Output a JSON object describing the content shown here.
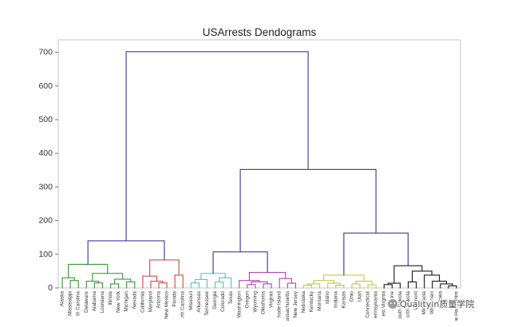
{
  "chart_data": {
    "type": "dendrogram",
    "title": "USArrests Dendograms",
    "ylim": [
      0,
      737
    ],
    "yticks": [
      0,
      100,
      200,
      300,
      400,
      500,
      600,
      700
    ],
    "grid": false,
    "leaves": [
      "Alaska",
      "Mississippi",
      "th Carolina",
      "Delaware",
      "Alabama",
      "Louisiana",
      "Illinois",
      "New York",
      "Michigan",
      "Nevada",
      "California",
      "Maryland",
      "Arizona",
      "New Mexico",
      "Florida",
      "rth Carolina",
      "Missouri",
      "Arkansas",
      "Tennessee",
      "Georgia",
      "Colorado",
      "Texas",
      "Washington",
      "Oregon",
      "Wyoming",
      "Oklahoma",
      "Virginia",
      "hode Island",
      "assachusetts",
      "New Jersey",
      "Nebraska",
      "Kentucky",
      "Montana",
      "Idaho",
      "Indiana",
      "Kansas",
      "Ohio",
      "Utah",
      "Connecticut",
      "ennsylvania",
      "est Virginia",
      "Maine",
      "outh Dakota",
      "orth Dakota",
      "Vermont",
      "Minnesota",
      "Wisconsin",
      "Iowa",
      "",
      "w Hampshire"
    ],
    "colors": {
      "blue": "#3d3d9c",
      "green": "#3c9a3c",
      "red": "#d44d4d",
      "cyan": "#55c6c6",
      "magenta": "#b348b3",
      "yellow": "#c6c64c",
      "black": "#1e1e1e"
    },
    "tree": {
      "height": 702,
      "color": "blue",
      "children": [
        {
          "height": 140,
          "children": [
            {
              "height": 70,
              "color": "green",
              "children": [
                {
                  "height": 30,
                  "children": [
                    0,
                    {
                      "height": 22,
                      "children": [
                        1,
                        2
                      ]
                    }
                  ]
                },
                {
                  "height": 43,
                  "children": [
                    {
                      "height": 20,
                      "children": [
                        3,
                        {
                          "height": 15,
                          "children": [
                            4,
                            5
                          ]
                        }
                      ]
                    },
                    {
                      "height": 26,
                      "children": [
                        {
                          "height": 12,
                          "children": [
                            6,
                            7
                          ]
                        },
                        {
                          "height": 18,
                          "children": [
                            8,
                            9
                          ]
                        }
                      ]
                    }
                  ]
                }
              ]
            },
            {
              "height": 83,
              "color": "red",
              "children": [
                {
                  "height": 35,
                  "children": [
                    10,
                    {
                      "height": 20,
                      "children": [
                        11,
                        {
                          "height": 15,
                          "children": [
                            12,
                            13
                          ]
                        }
                      ]
                    }
                  ]
                },
                {
                  "height": 38,
                  "children": [
                    14,
                    15
                  ]
                }
              ]
            }
          ]
        },
        {
          "height": 352,
          "children": [
            {
              "height": 107,
              "children": [
                {
                  "height": 43,
                  "color": "cyan",
                  "children": [
                    {
                      "height": 25,
                      "children": [
                        {
                          "height": 15,
                          "children": [
                            16,
                            17
                          ]
                        },
                        18
                      ]
                    },
                    {
                      "height": 30,
                      "children": [
                        {
                          "height": 18,
                          "children": [
                            19,
                            20
                          ]
                        },
                        21
                      ]
                    }
                  ]
                },
                {
                  "height": 46,
                  "color": "magenta",
                  "children": [
                    {
                      "height": 22,
                      "children": [
                        22,
                        {
                          "height": 18,
                          "children": [
                            {
                              "height": 10,
                              "children": [
                                23,
                                24
                              ]
                            },
                            {
                              "height": 12,
                              "children": [
                                25,
                                26
                              ]
                            }
                          ]
                        }
                      ]
                    },
                    {
                      "height": 28,
                      "children": [
                        27,
                        {
                          "height": 14,
                          "children": [
                            28,
                            29
                          ]
                        }
                      ]
                    }
                  ]
                }
              ]
            },
            {
              "height": 163,
              "children": [
                {
                  "height": 38,
                  "color": "yellow",
                  "children": [
                    {
                      "height": 22,
                      "children": [
                        {
                          "height": 12,
                          "children": [
                            {
                              "height": 8,
                              "children": [
                                30,
                                31
                              ]
                            },
                            32
                          ]
                        },
                        {
                          "height": 14,
                          "children": [
                            33,
                            {
                              "height": 8,
                              "children": [
                                34,
                                35
                              ]
                            }
                          ]
                        }
                      ]
                    },
                    {
                      "height": 20,
                      "children": [
                        {
                          "height": 12,
                          "children": [
                            36,
                            37
                          ]
                        },
                        {
                          "height": 9,
                          "children": [
                            38,
                            39
                          ]
                        }
                      ]
                    }
                  ]
                },
                {
                  "height": 66,
                  "color": "black",
                  "children": [
                    {
                      "height": 14,
                      "children": [
                        {
                          "height": 10,
                          "children": [
                            40,
                            41
                          ]
                        },
                        42
                      ]
                    },
                    {
                      "height": 50,
                      "children": [
                        {
                          "height": 18,
                          "children": [
                            43,
                            44
                          ]
                        },
                        {
                          "height": 38,
                          "children": [
                            45,
                            {
                              "height": 20,
                              "children": [
                                46,
                                {
                                  "height": 12,
                                  "children": [
                                    47,
                                    {
                                      "height": 6,
                                      "children": [
                                        48,
                                        49
                                      ]
                                    }
                                  ]
                                }
                              ]
                            }
                          ]
                        }
                      ]
                    }
                  ]
                }
              ]
            }
          ]
        }
      ]
    }
  },
  "watermark": {
    "icon": "wechat-logo-icon",
    "text": "Qualityin质量学院"
  }
}
